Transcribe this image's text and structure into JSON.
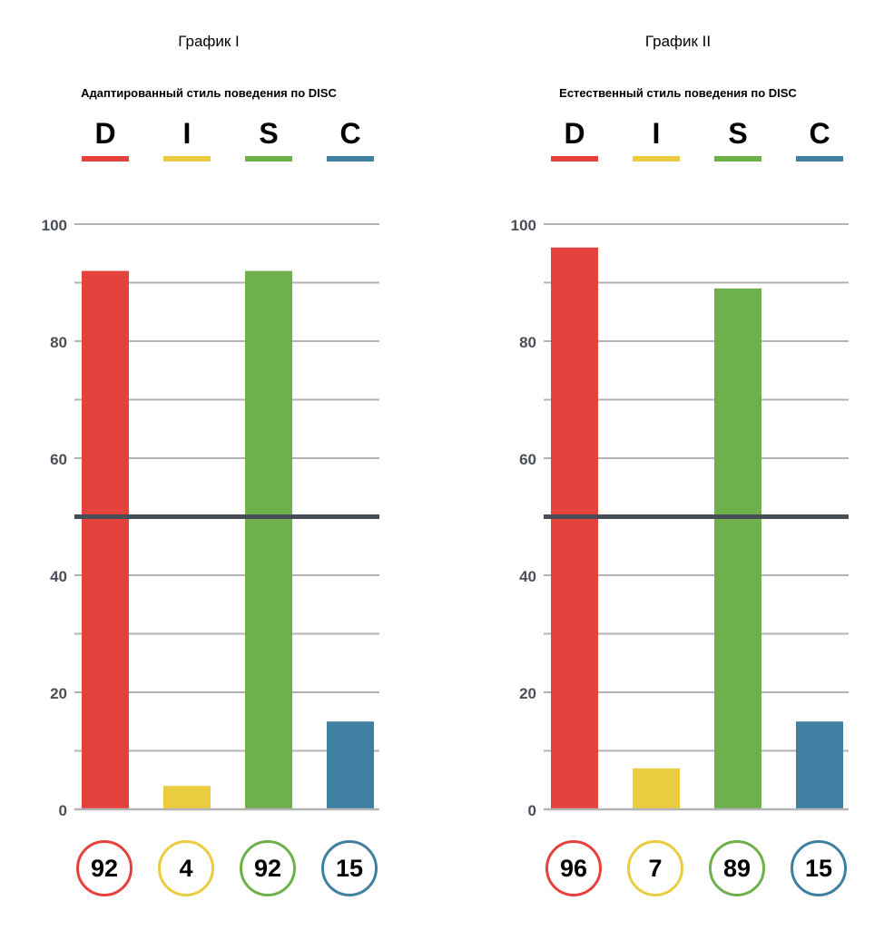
{
  "chart_data": [
    {
      "type": "bar",
      "title": "График I",
      "subtitle": "Адаптированный стиль поведения по DISC",
      "categories": [
        "D",
        "I",
        "S",
        "C"
      ],
      "values": [
        92,
        4,
        92,
        15
      ],
      "colors": [
        "#e5413d",
        "#ebcc40",
        "#6eb04a",
        "#3f7fa1"
      ],
      "ylim": [
        0,
        100
      ],
      "yticks": [
        0,
        20,
        40,
        60,
        80,
        100
      ],
      "ytick_labels": [
        "0",
        "20",
        "40",
        "60",
        "80",
        "100"
      ],
      "minor_grid": [
        10,
        30,
        50,
        70,
        90
      ],
      "reference_line": 50,
      "grid": true
    },
    {
      "type": "bar",
      "title": "График II",
      "subtitle": "Естественный стиль поведения по DISC",
      "categories": [
        "D",
        "I",
        "S",
        "C"
      ],
      "values": [
        96,
        7,
        89,
        15
      ],
      "colors": [
        "#e5413d",
        "#ebcc40",
        "#6eb04a",
        "#3f7fa1"
      ],
      "ylim": [
        0,
        100
      ],
      "yticks": [
        0,
        20,
        40,
        60,
        80,
        100
      ],
      "ytick_labels": [
        "0",
        "20",
        "40",
        "60",
        "80",
        "100"
      ],
      "minor_grid": [
        10,
        30,
        50,
        70,
        90
      ],
      "reference_line": 50,
      "grid": true
    }
  ],
  "value_labels": [
    [
      "92",
      "4",
      "92",
      "15"
    ],
    [
      "96",
      "7",
      "89",
      "15"
    ]
  ]
}
